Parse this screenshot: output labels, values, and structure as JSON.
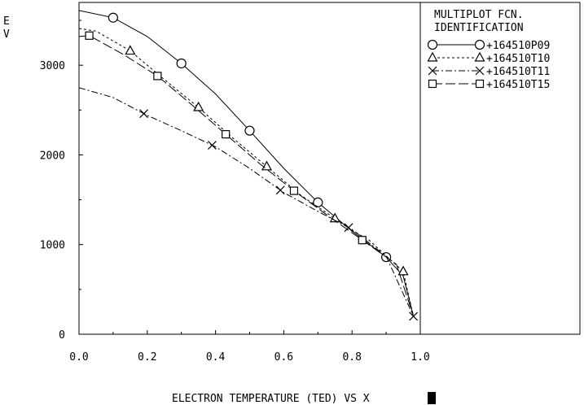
{
  "chart_data": {
    "type": "line",
    "title": "",
    "xlabel": "ELECTRON TEMPERATURE (TED) VS X",
    "ylabel": "E\nV",
    "xlim": [
      0,
      1.0
    ],
    "ylim": [
      0,
      3700
    ],
    "x_ticks": [
      0.0,
      0.2,
      0.4,
      0.6,
      0.8,
      1.0
    ],
    "x_tick_labels": [
      "0.0",
      "0.2",
      "0.4",
      "0.6",
      "0.8",
      "1.0"
    ],
    "y_ticks": [
      0,
      1000,
      2000,
      3000
    ],
    "y_tick_labels": [
      "0",
      "1000",
      "2000",
      "3000"
    ],
    "grid": false,
    "legend": {
      "placement": "right",
      "header": [
        "MULTIPLOT FCN.",
        "IDENTIFICATION"
      ]
    },
    "series": [
      {
        "name": "+164510P09",
        "marker": "circle",
        "dash": "solid",
        "x": [
          0.0,
          0.1,
          0.2,
          0.3,
          0.4,
          0.5,
          0.6,
          0.7,
          0.8,
          0.9,
          0.95,
          0.98
        ],
        "y": [
          3610,
          3530,
          3320,
          3020,
          2680,
          2270,
          1850,
          1470,
          1150,
          860,
          650,
          200
        ],
        "marker_x": [
          0.1,
          0.3,
          0.5,
          0.7,
          0.9
        ]
      },
      {
        "name": "+164510T10",
        "marker": "triangle",
        "dash": "dashed",
        "x": [
          0.0,
          0.05,
          0.15,
          0.25,
          0.35,
          0.45,
          0.55,
          0.65,
          0.75,
          0.8,
          0.85,
          0.95,
          0.98
        ],
        "y": [
          3410,
          3380,
          3160,
          2840,
          2530,
          2190,
          1870,
          1550,
          1290,
          1160,
          1050,
          700,
          200
        ],
        "marker_x": [
          0.15,
          0.35,
          0.55,
          0.75,
          0.95
        ]
      },
      {
        "name": "+164510T11",
        "marker": "x",
        "dash": "dashdot",
        "x": [
          0.0,
          0.1,
          0.2,
          0.3,
          0.4,
          0.5,
          0.6,
          0.7,
          0.8,
          0.9,
          0.98
        ],
        "y": [
          2750,
          2640,
          2440,
          2270,
          2090,
          1850,
          1580,
          1370,
          1170,
          870,
          200
        ],
        "marker_x": [
          0.19,
          0.39,
          0.59,
          0.79,
          0.98
        ]
      },
      {
        "name": "+164510T15",
        "marker": "square",
        "dash": "longdash",
        "x": [
          0.0,
          0.03,
          0.13,
          0.23,
          0.33,
          0.43,
          0.53,
          0.63,
          0.73,
          0.83,
          0.93,
          0.98
        ],
        "y": [
          3320,
          3330,
          3120,
          2880,
          2560,
          2230,
          1900,
          1600,
          1320,
          1050,
          780,
          200
        ],
        "marker_x": [
          0.03,
          0.23,
          0.43,
          0.63,
          0.83
        ]
      }
    ]
  }
}
